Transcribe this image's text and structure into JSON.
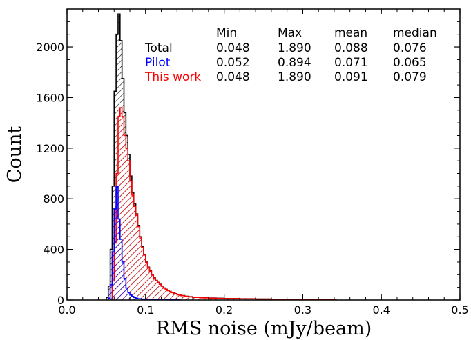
{
  "chart_data": {
    "type": "histogram",
    "xlabel": "RMS noise (mJy/beam)",
    "ylabel": "Count",
    "xlim": [
      0.0,
      0.5
    ],
    "ylim": [
      0,
      2300
    ],
    "xticks": [
      "0.0",
      "0.1",
      "0.2",
      "0.3",
      "0.4",
      "0.5"
    ],
    "xtick_values": [
      0.0,
      0.1,
      0.2,
      0.3,
      0.4,
      0.5
    ],
    "yticks": [
      "0",
      "400",
      "800",
      "1200",
      "1600",
      "2000"
    ],
    "ytick_values": [
      0,
      400,
      800,
      1200,
      1600,
      2000
    ],
    "bin_width": 0.0025,
    "series": [
      {
        "name": "Total",
        "color": "#000000",
        "hatch": "diagonal",
        "bins_start": [
          0.05,
          0.0525,
          0.055,
          0.0575,
          0.06,
          0.0625,
          0.065,
          0.0675,
          0.07,
          0.0725,
          0.075,
          0.0775,
          0.08,
          0.0825,
          0.085,
          0.0875,
          0.09,
          0.0925,
          0.095,
          0.0975,
          0.1,
          0.1025,
          0.105,
          0.1075,
          0.11,
          0.1125,
          0.115,
          0.1175,
          0.12,
          0.1225,
          0.125,
          0.1275,
          0.13,
          0.1325,
          0.135,
          0.1375,
          0.14,
          0.145,
          0.15,
          0.155,
          0.16,
          0.17,
          0.18,
          0.19,
          0.2,
          0.22,
          0.24,
          0.26,
          0.3,
          0.34
        ],
        "counts": [
          20,
          110,
          400,
          900,
          1650,
          2100,
          2260,
          2050,
          1750,
          1480,
          1300,
          1150,
          980,
          850,
          760,
          680,
          590,
          500,
          420,
          360,
          300,
          260,
          230,
          200,
          175,
          155,
          140,
          125,
          110,
          95,
          85,
          75,
          68,
          60,
          55,
          50,
          42,
          35,
          30,
          26,
          22,
          18,
          16,
          14,
          12,
          10,
          8,
          6,
          4,
          2
        ]
      },
      {
        "name": "Pilot",
        "color": "#0000ff",
        "hatch": "diagonal",
        "bins_start": [
          0.0525,
          0.055,
          0.0575,
          0.06,
          0.0625,
          0.065,
          0.0675,
          0.07,
          0.0725,
          0.075,
          0.0775,
          0.08,
          0.0825,
          0.085,
          0.0875,
          0.09,
          0.095,
          0.1,
          0.11,
          0.12,
          0.13,
          0.14
        ],
        "counts": [
          15,
          120,
          380,
          720,
          900,
          640,
          480,
          300,
          170,
          95,
          60,
          40,
          28,
          20,
          14,
          10,
          7,
          5,
          3,
          2,
          1,
          1
        ]
      },
      {
        "name": "This work",
        "color": "#ff0000",
        "hatch": "diagonal",
        "bins_start": [
          0.0575,
          0.06,
          0.0625,
          0.065,
          0.0675,
          0.07,
          0.0725,
          0.075,
          0.0775,
          0.08,
          0.0825,
          0.085,
          0.0875,
          0.09,
          0.0925,
          0.095,
          0.0975,
          0.1,
          0.1025,
          0.105,
          0.1075,
          0.11,
          0.1125,
          0.115,
          0.1175,
          0.12,
          0.1225,
          0.125,
          0.1275,
          0.13,
          0.1325,
          0.135,
          0.1375,
          0.14,
          0.145,
          0.15,
          0.155,
          0.16,
          0.17,
          0.18,
          0.19,
          0.2,
          0.22,
          0.24,
          0.26,
          0.3,
          0.34
        ],
        "counts": [
          150,
          450,
          1000,
          1450,
          1520,
          1450,
          1300,
          1200,
          1100,
          940,
          830,
          740,
          670,
          580,
          490,
          415,
          355,
          298,
          258,
          228,
          198,
          174,
          154,
          139,
          124,
          109,
          94,
          84,
          74,
          67,
          59,
          54,
          49,
          41,
          34,
          29,
          25,
          21,
          17,
          15,
          13,
          11,
          9,
          7,
          5,
          3,
          2
        ]
      }
    ],
    "stats_table": {
      "headers": [
        "Min",
        "Max",
        "mean",
        "median"
      ],
      "rows": [
        {
          "label": "Total",
          "color": "#000000",
          "values": [
            "0.048",
            "1.890",
            "0.088",
            "0.076"
          ]
        },
        {
          "label": "Pilot",
          "color": "#0000ff",
          "values": [
            "0.052",
            "0.894",
            "0.071",
            "0.065"
          ]
        },
        {
          "label": "This work",
          "color": "#ff0000",
          "values": [
            "0.048",
            "1.890",
            "0.091",
            "0.079"
          ]
        }
      ]
    }
  }
}
